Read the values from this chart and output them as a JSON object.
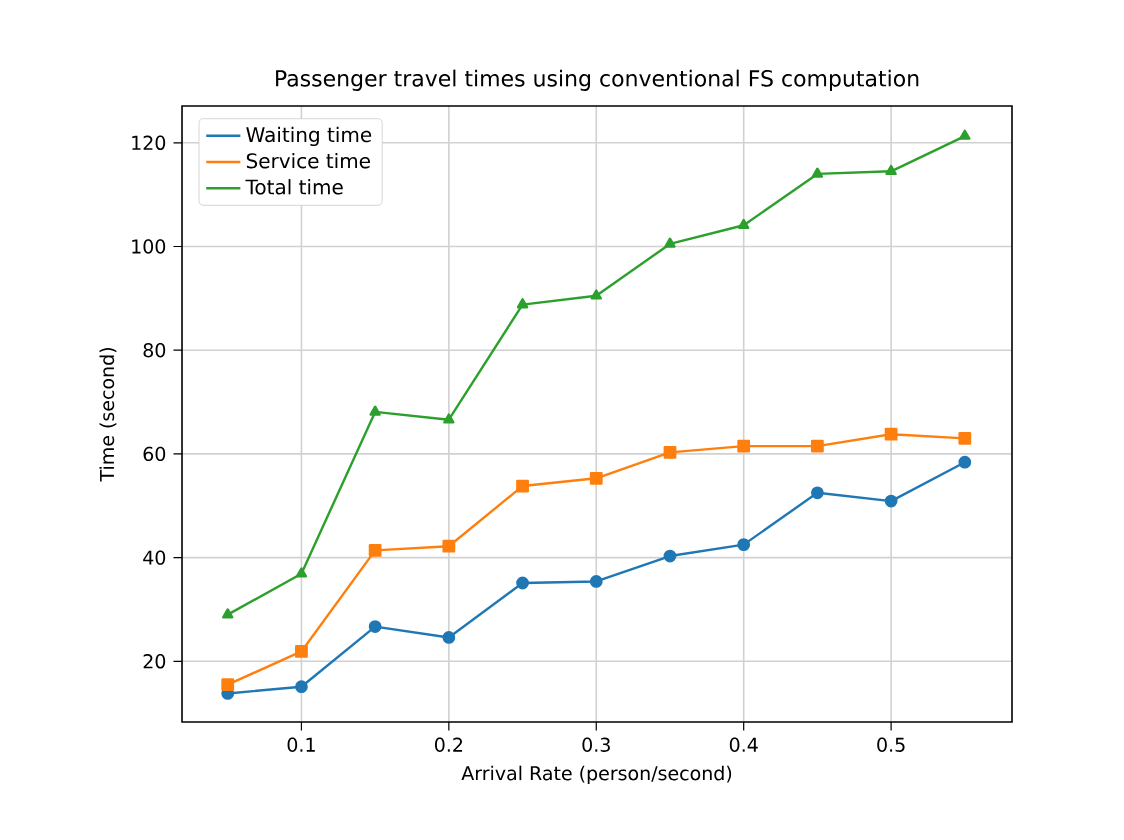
{
  "chart_data": {
    "type": "line",
    "title": "Passenger travel times using conventional FS computation",
    "xlabel": "Arrival Rate (person/second)",
    "ylabel": "Time (second)",
    "x": [
      0.05,
      0.1,
      0.15,
      0.2,
      0.25,
      0.3,
      0.35,
      0.4,
      0.45,
      0.5,
      0.55
    ],
    "series": [
      {
        "name": "Waiting time",
        "color": "#1f77b4",
        "marker": "circle",
        "values": [
          13.8,
          15.1,
          26.7,
          24.6,
          35.1,
          35.4,
          40.3,
          42.5,
          52.5,
          50.9,
          58.4
        ]
      },
      {
        "name": "Service time",
        "color": "#ff7f0e",
        "marker": "square",
        "values": [
          15.5,
          21.9,
          41.4,
          42.2,
          53.8,
          55.3,
          60.3,
          61.5,
          61.5,
          63.8,
          63.0
        ]
      },
      {
        "name": "Total time",
        "color": "#2ca02c",
        "marker": "triangle",
        "values": [
          29.0,
          36.9,
          68.1,
          66.6,
          88.8,
          90.5,
          100.5,
          104.1,
          114.0,
          114.5,
          121.3
        ]
      }
    ],
    "xlim": [
      0.019,
      0.582
    ],
    "ylim": [
      8.3,
      127.1
    ],
    "xticks": [
      0.1,
      0.2,
      0.3,
      0.4,
      0.5
    ],
    "yticks": [
      20,
      40,
      60,
      80,
      100,
      120
    ],
    "grid": true,
    "legend": "top left",
    "line_style": "solid"
  }
}
